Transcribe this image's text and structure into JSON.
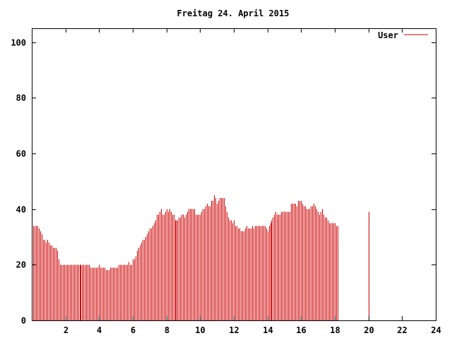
{
  "chart_data": {
    "type": "bar",
    "title": "Freitag 24. April 2015",
    "xlabel": "",
    "ylabel": "",
    "xlim": [
      0,
      24
    ],
    "ylim": [
      0,
      105
    ],
    "x_ticks": [
      2,
      4,
      6,
      8,
      10,
      12,
      14,
      16,
      18,
      20,
      22,
      24
    ],
    "y_ticks": [
      0,
      20,
      40,
      60,
      80,
      100
    ],
    "x_tick_labels": [
      "2",
      "4",
      "6",
      "8",
      "10",
      "12",
      "14",
      "16",
      "18",
      "20",
      "22",
      "24"
    ],
    "y_tick_labels": [
      "0",
      "20",
      "40",
      "60",
      "80",
      "100"
    ],
    "grid": false,
    "legend_position": "top-right",
    "series": [
      {
        "name": "User",
        "color": "#cc0000",
        "x_start": 0,
        "x_step": 0.0833,
        "values": [
          33,
          34,
          34,
          34,
          34,
          33,
          32,
          31,
          29,
          29,
          28,
          29,
          28,
          27,
          27,
          26,
          26,
          26,
          25,
          22,
          20,
          20,
          20,
          20,
          20,
          20,
          20,
          20,
          20,
          20,
          20,
          20,
          20,
          20,
          20,
          20,
          20,
          20,
          20,
          20,
          20,
          20,
          19,
          19,
          19,
          19,
          19,
          19,
          19,
          19,
          19,
          19,
          19,
          18,
          18,
          18,
          19,
          19,
          19,
          19,
          19,
          19,
          20,
          20,
          20,
          20,
          20,
          20,
          20,
          21,
          20,
          20,
          22,
          22,
          23,
          25,
          26,
          27,
          28,
          29,
          29,
          30,
          31,
          32,
          33,
          33,
          34,
          35,
          36,
          38,
          38,
          39,
          40,
          38,
          38,
          39,
          40,
          39,
          40,
          39,
          38,
          38,
          36,
          36,
          36,
          37,
          37,
          38,
          38,
          37,
          38,
          39,
          40,
          40,
          40,
          40,
          40,
          38,
          38,
          38,
          38,
          39,
          40,
          40,
          41,
          42,
          41,
          41,
          43,
          43,
          45,
          44,
          42,
          43,
          44,
          44,
          44,
          44,
          41,
          39,
          37,
          36,
          36,
          35,
          35,
          34,
          34,
          33,
          33,
          32,
          32,
          32,
          33,
          34,
          33,
          33,
          33,
          34,
          33,
          34,
          34,
          34,
          34,
          34,
          34,
          34,
          34,
          33,
          32,
          34,
          35,
          36,
          37,
          38,
          39,
          38,
          38,
          38,
          39,
          39,
          39,
          39,
          39,
          39,
          39,
          42,
          42,
          42,
          42,
          41,
          43,
          43,
          43,
          42,
          41,
          41,
          40,
          40,
          40,
          41,
          41,
          42,
          41,
          40,
          39,
          38,
          39,
          40,
          38,
          37,
          37,
          36,
          35,
          35,
          35,
          35,
          35,
          34,
          34
        ],
        "spikes": [
          {
            "x": 4.0,
            "value": 20
          },
          {
            "x": 12.0,
            "value": 36
          },
          {
            "x": 20.0,
            "value": 39
          }
        ]
      }
    ]
  }
}
